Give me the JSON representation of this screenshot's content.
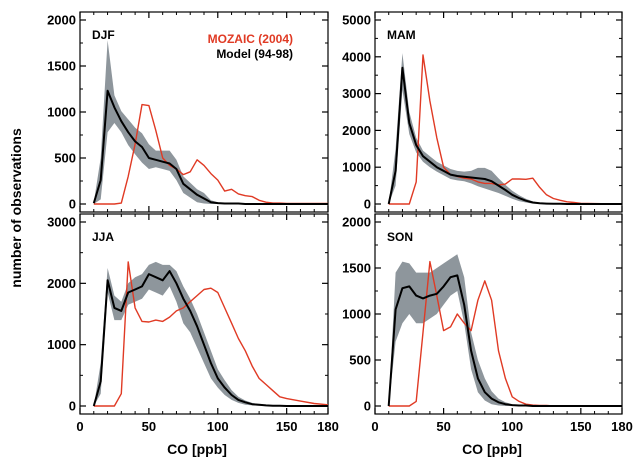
{
  "figure": {
    "ylabel": "number of observations",
    "xlabel": "CO [ppb]",
    "legend": [
      {
        "label": "MOZAIC (2004)",
        "color": "#e03a24"
      },
      {
        "label": "Model (94-98)",
        "color": "#000000"
      }
    ],
    "colors": {
      "mozaic": "#e03a24",
      "model": "#000000",
      "band": "#8e969c"
    }
  },
  "chart_data": [
    {
      "type": "line",
      "panel": "DJF",
      "xlim": [
        0,
        180
      ],
      "ylim": [
        0,
        2000
      ],
      "xticks": [
        "0",
        "50",
        "100",
        "150",
        "180"
      ],
      "yticks": [
        "0",
        "500",
        "1000",
        "1500",
        "2000"
      ],
      "x": [
        10,
        15,
        20,
        25,
        30,
        35,
        40,
        45,
        50,
        55,
        60,
        65,
        70,
        75,
        80,
        85,
        90,
        95,
        100,
        105,
        110,
        115,
        120,
        125,
        130,
        135,
        140,
        145,
        150,
        160,
        170,
        180
      ],
      "series": [
        {
          "name": "MOZAIC (2004)",
          "color": "#e03a24",
          "values": [
            0,
            0,
            0,
            0,
            10,
            300,
            650,
            1080,
            1070,
            800,
            500,
            420,
            380,
            320,
            350,
            480,
            420,
            330,
            260,
            140,
            160,
            110,
            90,
            80,
            40,
            20,
            10,
            10,
            5,
            5,
            5,
            5
          ]
        },
        {
          "name": "Model (94-98)",
          "color": "#000000",
          "values": [
            10,
            260,
            1230,
            1050,
            900,
            780,
            680,
            620,
            500,
            480,
            460,
            440,
            380,
            220,
            160,
            100,
            60,
            20,
            10,
            5,
            5,
            5,
            0,
            0,
            0,
            0,
            0,
            0,
            0,
            0,
            0,
            0
          ],
          "band_low": [
            0,
            50,
            780,
            880,
            780,
            640,
            540,
            450,
            380,
            400,
            380,
            360,
            260,
            120,
            70,
            20,
            5,
            0,
            0,
            0,
            0,
            0,
            0,
            0,
            0,
            0,
            0,
            0,
            0,
            0,
            0,
            0
          ],
          "band_high": [
            20,
            500,
            1780,
            1180,
            1010,
            920,
            830,
            770,
            650,
            580,
            580,
            580,
            480,
            300,
            230,
            160,
            120,
            40,
            20,
            10,
            10,
            10,
            0,
            0,
            0,
            0,
            0,
            0,
            0,
            0,
            0,
            0
          ]
        }
      ]
    },
    {
      "type": "line",
      "panel": "MAM",
      "xlim": [
        0,
        180
      ],
      "ylim": [
        0,
        5000
      ],
      "xticks": [
        "0",
        "50",
        "100",
        "150",
        "180"
      ],
      "yticks": [
        "0",
        "1000",
        "2000",
        "3000",
        "4000",
        "5000"
      ],
      "x": [
        10,
        15,
        20,
        25,
        30,
        35,
        40,
        45,
        50,
        55,
        60,
        65,
        70,
        75,
        80,
        85,
        90,
        95,
        100,
        105,
        110,
        115,
        120,
        125,
        130,
        135,
        140,
        145,
        150,
        160,
        170,
        180
      ],
      "series": [
        {
          "name": "MOZAIC (2004)",
          "color": "#e03a24",
          "values": [
            0,
            0,
            0,
            0,
            600,
            4050,
            2800,
            1800,
            1000,
            800,
            750,
            700,
            680,
            600,
            560,
            560,
            520,
            540,
            680,
            680,
            670,
            700,
            450,
            250,
            150,
            100,
            60,
            40,
            20,
            10,
            5,
            5
          ]
        },
        {
          "name": "Model (94-98)",
          "color": "#000000",
          "values": [
            0,
            900,
            3700,
            2200,
            1600,
            1300,
            1150,
            1000,
            900,
            800,
            760,
            740,
            720,
            700,
            680,
            620,
            500,
            380,
            250,
            160,
            90,
            40,
            20,
            10,
            5,
            5,
            0,
            0,
            0,
            0,
            0,
            0
          ],
          "band_low": [
            0,
            500,
            3100,
            1900,
            1400,
            1150,
            1000,
            880,
            780,
            680,
            640,
            620,
            560,
            480,
            420,
            360,
            300,
            220,
            140,
            80,
            40,
            10,
            5,
            0,
            0,
            0,
            0,
            0,
            0,
            0,
            0,
            0
          ],
          "band_high": [
            0,
            1500,
            4100,
            2500,
            1800,
            1450,
            1300,
            1150,
            1050,
            950,
            900,
            880,
            900,
            980,
            980,
            900,
            700,
            520,
            360,
            240,
            140,
            70,
            30,
            20,
            10,
            10,
            0,
            0,
            0,
            0,
            0,
            0
          ]
        }
      ]
    },
    {
      "type": "line",
      "panel": "JJA",
      "xlim": [
        0,
        180
      ],
      "ylim": [
        0,
        3000
      ],
      "xticks": [
        "0",
        "50",
        "100",
        "150",
        "180"
      ],
      "yticks": [
        "0",
        "1000",
        "2000",
        "3000"
      ],
      "x": [
        10,
        15,
        20,
        25,
        30,
        35,
        40,
        45,
        50,
        55,
        60,
        65,
        70,
        75,
        80,
        85,
        90,
        95,
        100,
        105,
        110,
        115,
        120,
        125,
        130,
        135,
        140,
        145,
        150,
        160,
        170,
        180
      ],
      "series": [
        {
          "name": "MOZAIC (2004)",
          "color": "#e03a24",
          "values": [
            0,
            0,
            0,
            0,
            200,
            2350,
            1600,
            1380,
            1370,
            1400,
            1380,
            1450,
            1550,
            1600,
            1700,
            1800,
            1900,
            1920,
            1850,
            1600,
            1350,
            1100,
            900,
            650,
            450,
            350,
            250,
            150,
            120,
            80,
            40,
            20
          ]
        },
        {
          "name": "Model (94-98)",
          "color": "#000000",
          "values": [
            0,
            400,
            2050,
            1600,
            1550,
            1850,
            1900,
            1950,
            2150,
            2100,
            2050,
            2200,
            2000,
            1750,
            1550,
            1300,
            1000,
            700,
            450,
            300,
            180,
            100,
            60,
            30,
            20,
            10,
            5,
            5,
            0,
            0,
            0,
            0
          ],
          "band_low": [
            0,
            200,
            1850,
            1400,
            1400,
            1650,
            1700,
            1750,
            1900,
            1850,
            1800,
            1950,
            1700,
            1350,
            1200,
            950,
            700,
            450,
            300,
            180,
            100,
            50,
            20,
            10,
            5,
            0,
            0,
            0,
            0,
            0,
            0,
            0
          ],
          "band_high": [
            0,
            700,
            2250,
            1800,
            1700,
            2000,
            2100,
            2150,
            2300,
            2350,
            2300,
            2300,
            2200,
            1950,
            1750,
            1500,
            1200,
            900,
            600,
            420,
            260,
            150,
            90,
            50,
            30,
            20,
            10,
            5,
            0,
            0,
            0,
            0
          ]
        }
      ]
    },
    {
      "type": "line",
      "panel": "SON",
      "xlim": [
        0,
        180
      ],
      "ylim": [
        0,
        2000
      ],
      "xticks": [
        "0",
        "50",
        "100",
        "150",
        "180"
      ],
      "yticks": [
        "0",
        "500",
        "1000",
        "1500",
        "2000"
      ],
      "x": [
        10,
        15,
        20,
        25,
        30,
        35,
        40,
        45,
        50,
        55,
        60,
        65,
        70,
        75,
        80,
        85,
        90,
        95,
        100,
        105,
        110,
        115,
        120,
        125,
        130,
        135,
        140,
        145,
        150,
        160,
        170,
        180
      ],
      "series": [
        {
          "name": "MOZAIC (2004)",
          "color": "#e03a24",
          "values": [
            0,
            0,
            0,
            0,
            50,
            800,
            1570,
            1200,
            820,
            860,
            1000,
            900,
            820,
            1150,
            1360,
            1150,
            600,
            300,
            100,
            50,
            20,
            10,
            5,
            5,
            0,
            0,
            0,
            0,
            0,
            0,
            0,
            0
          ]
        },
        {
          "name": "Model (94-98)",
          "color": "#000000",
          "values": [
            0,
            1050,
            1280,
            1300,
            1200,
            1170,
            1200,
            1220,
            1300,
            1400,
            1420,
            1100,
            600,
            300,
            150,
            80,
            40,
            20,
            10,
            5,
            5,
            0,
            0,
            0,
            0,
            0,
            0,
            0,
            0,
            0,
            0,
            0
          ],
          "band_low": [
            0,
            700,
            900,
            1000,
            900,
            900,
            950,
            1000,
            1100,
            1200,
            1250,
            900,
            400,
            150,
            60,
            20,
            5,
            0,
            0,
            0,
            0,
            0,
            0,
            0,
            0,
            0,
            0,
            0,
            0,
            0,
            0,
            0
          ],
          "band_high": [
            0,
            1450,
            1570,
            1550,
            1450,
            1450,
            1450,
            1500,
            1550,
            1600,
            1650,
            1400,
            800,
            500,
            300,
            160,
            80,
            40,
            20,
            10,
            10,
            0,
            0,
            0,
            0,
            0,
            0,
            0,
            0,
            0,
            0,
            0
          ]
        }
      ]
    }
  ]
}
